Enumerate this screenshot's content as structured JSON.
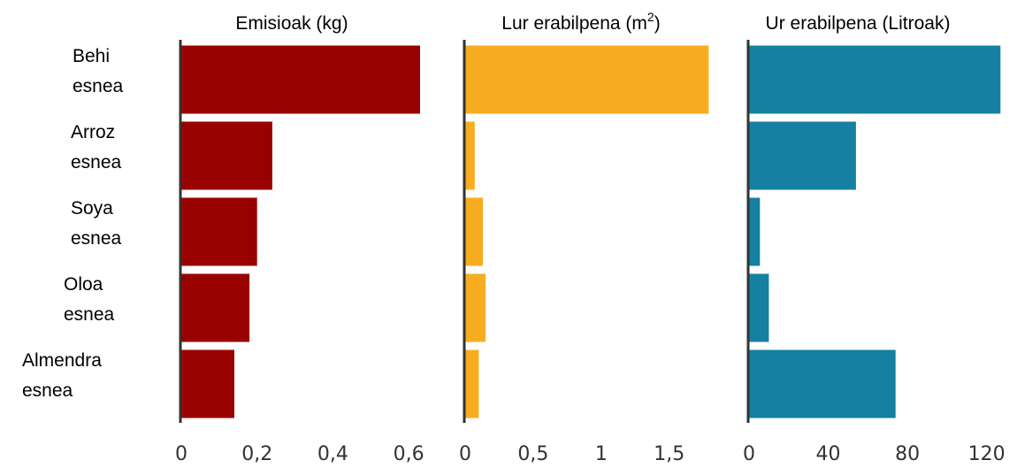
{
  "chart_data": {
    "type": "bar",
    "orientation": "horizontal",
    "categories": [
      [
        "Behi",
        "esnea"
      ],
      [
        "Arroz",
        "esnea"
      ],
      [
        "Soya",
        "esnea"
      ],
      [
        "Oloa",
        "esnea"
      ],
      [
        "Almendra",
        "esnea"
      ]
    ],
    "panels": [
      {
        "title": "Emisioak (kg)",
        "title_superscript": "",
        "title_suffix": "",
        "color": "#990000",
        "values": [
          0.63,
          0.24,
          0.2,
          0.18,
          0.14
        ],
        "xlim": [
          0,
          0.7
        ],
        "ticks": [
          0,
          0.2,
          0.4,
          0.6
        ],
        "tick_labels": [
          "0",
          "0,2",
          "0,4",
          "0,6"
        ]
      },
      {
        "title": "Lur erabilpena (m",
        "title_superscript": "2",
        "title_suffix": ")",
        "color": "#F8AD20",
        "values": [
          1.79,
          0.07,
          0.13,
          0.15,
          0.1
        ],
        "xlim": [
          0,
          1.95
        ],
        "ticks": [
          0,
          0.5,
          1,
          1.5
        ],
        "tick_labels": [
          "0",
          "0,5",
          "1",
          "1,5"
        ]
      },
      {
        "title": "Ur erabilpena (Litroak)",
        "title_superscript": "",
        "title_suffix": "",
        "color": "#1580A1",
        "values": [
          127,
          54,
          5.5,
          10,
          74
        ],
        "xlim": [
          0,
          134
        ],
        "ticks": [
          0,
          40,
          80,
          120
        ],
        "tick_labels": [
          "0",
          "40",
          "80",
          "120"
        ]
      }
    ]
  }
}
